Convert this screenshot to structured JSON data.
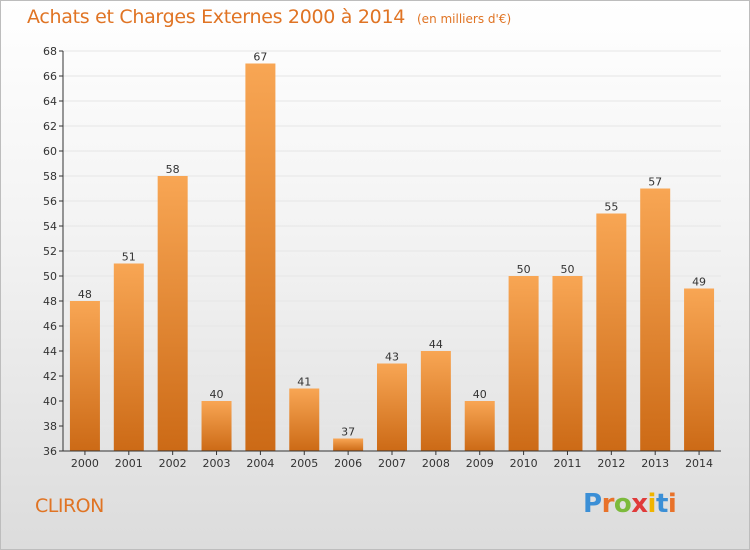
{
  "title": "Achats et Charges Externes 2000 à 2014",
  "subtitle": "(en milliers d'€)",
  "commune": "CLIRON",
  "logo": {
    "text": "Proxiti",
    "letter_colors": [
      "#3b8fd6",
      "#e8722a",
      "#7cba3c",
      "#e03a3a",
      "#f0b400",
      "#3b8fd6",
      "#e8722a"
    ]
  },
  "colors": {
    "bar_light": "#f8a654",
    "bar_dark": "#cc6a16",
    "text_orange": "#e07424",
    "axis": "#333333",
    "grid": "#e6e6e6"
  },
  "chart_data": {
    "type": "bar",
    "categories": [
      "2000",
      "2001",
      "2002",
      "2003",
      "2004",
      "2005",
      "2006",
      "2007",
      "2008",
      "2009",
      "2010",
      "2011",
      "2012",
      "2013",
      "2014"
    ],
    "values": [
      48,
      51,
      58,
      40,
      67,
      41,
      37,
      43,
      44,
      40,
      50,
      50,
      55,
      57,
      49
    ],
    "ylim": [
      36,
      68
    ],
    "yticks": [
      36,
      38,
      40,
      42,
      44,
      46,
      48,
      50,
      52,
      54,
      56,
      58,
      60,
      62,
      64,
      66,
      68
    ],
    "data_labels": true,
    "grid": true,
    "title": "Achats et Charges Externes 2000 à 2014",
    "xlabel": "",
    "ylabel": ""
  }
}
